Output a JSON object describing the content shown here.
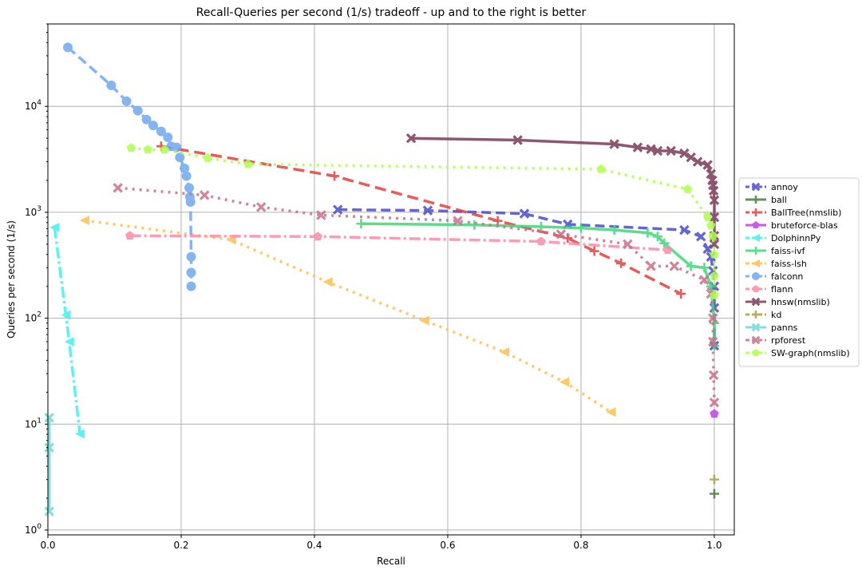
{
  "chart_data": {
    "type": "line",
    "title": "Recall-Queries per second (1/s) tradeoff - up and to the right is better",
    "xlabel": "Recall",
    "ylabel": "Queries per second (1/s)",
    "x_scale": "linear",
    "y_scale": "log",
    "xlim": [
      0.0,
      1.03
    ],
    "ylim": [
      0.9,
      60000
    ],
    "grid": true,
    "legend_position": "right",
    "x_ticks": [
      0.0,
      0.2,
      0.4,
      0.6,
      0.8,
      1.0
    ],
    "x_tick_labels": [
      "0.0",
      "0.2",
      "0.4",
      "0.6",
      "0.8",
      "1.0"
    ],
    "y_ticks": [
      1,
      10,
      100,
      1000,
      10000
    ],
    "y_tick_labels": [
      {
        "base": "10",
        "exp": "0"
      },
      {
        "base": "10",
        "exp": "1"
      },
      {
        "base": "10",
        "exp": "2"
      },
      {
        "base": "10",
        "exp": "3"
      },
      {
        "base": "10",
        "exp": "4"
      }
    ],
    "series": [
      {
        "name": "annoy",
        "color": "#4c4cc9",
        "dash": "12,6",
        "marker": "x",
        "points": [
          [
            0.435,
            1060
          ],
          [
            0.57,
            1040
          ],
          [
            0.715,
            970
          ],
          [
            0.78,
            770
          ],
          [
            0.955,
            680
          ],
          [
            0.98,
            590
          ],
          [
            0.99,
            450
          ],
          [
            0.995,
            380
          ],
          [
            0.998,
            280
          ],
          [
            1.0,
            200
          ],
          [
            1.0,
            125
          ],
          [
            1.0,
            55
          ]
        ]
      },
      {
        "name": "ball",
        "color": "#4a7c40",
        "dash": "",
        "marker": "plus",
        "points": [
          [
            1.0,
            2.2
          ]
        ]
      },
      {
        "name": "BallTree(nmslib)",
        "color": "#e04040",
        "dash": "14,7",
        "marker": "plus",
        "points": [
          [
            0.17,
            4200
          ],
          [
            0.43,
            2200
          ],
          [
            0.675,
            830
          ],
          [
            0.78,
            570
          ],
          [
            0.82,
            430
          ],
          [
            0.86,
            330
          ],
          [
            0.95,
            170
          ]
        ]
      },
      {
        "name": "bruteforce-blas",
        "color": "#bf3fea",
        "dash": "",
        "marker": "pentagon",
        "points": [
          [
            1.0,
            12.5
          ]
        ]
      },
      {
        "name": "DolphinnPy",
        "color": "#40f0f0",
        "dash": "14,4,3,4",
        "marker": "tri-left",
        "points": [
          [
            0.01,
            720
          ],
          [
            0.027,
            107
          ],
          [
            0.032,
            60
          ],
          [
            0.048,
            8.1
          ]
        ]
      },
      {
        "name": "faiss-ivf",
        "color": "#40d87a",
        "dash": "",
        "marker": "plus",
        "points": [
          [
            0.47,
            780
          ],
          [
            0.64,
            760
          ],
          [
            0.74,
            730
          ],
          [
            0.8,
            710
          ],
          [
            0.85,
            680
          ],
          [
            0.9,
            640
          ],
          [
            0.915,
            590
          ],
          [
            0.925,
            510
          ],
          [
            0.965,
            310
          ],
          [
            0.985,
            300
          ],
          [
            0.995,
            200
          ],
          [
            1.0,
            90
          ],
          [
            1.0,
            55
          ]
        ]
      },
      {
        "name": "faiss-lsh",
        "color": "#ffc04c",
        "dash": "3,6",
        "marker": "tri-left",
        "points": [
          [
            0.055,
            840
          ],
          [
            0.275,
            550
          ],
          [
            0.42,
            220
          ],
          [
            0.565,
            95
          ],
          [
            0.685,
            48
          ],
          [
            0.775,
            25
          ],
          [
            0.845,
            13
          ]
        ]
      },
      {
        "name": "falconn",
        "color": "#6fa8f0",
        "dash": "12,6",
        "marker": "circle",
        "points": [
          [
            0.03,
            36000
          ],
          [
            0.095,
            15800
          ],
          [
            0.118,
            11200
          ],
          [
            0.135,
            9100
          ],
          [
            0.148,
            7500
          ],
          [
            0.158,
            6600
          ],
          [
            0.17,
            5800
          ],
          [
            0.18,
            5100
          ],
          [
            0.185,
            4200
          ],
          [
            0.193,
            4100
          ],
          [
            0.198,
            3300
          ],
          [
            0.205,
            2600
          ],
          [
            0.208,
            2200
          ],
          [
            0.212,
            1700
          ],
          [
            0.213,
            1400
          ],
          [
            0.214,
            1250
          ],
          [
            0.215,
            380
          ],
          [
            0.215,
            270
          ],
          [
            0.215,
            200
          ]
        ]
      },
      {
        "name": "flann",
        "color": "#ff8aa8",
        "dash": "14,4,3,4",
        "marker": "pentagon",
        "points": [
          [
            0.123,
            600
          ],
          [
            0.405,
            590
          ],
          [
            0.74,
            530
          ],
          [
            0.93,
            440
          ]
        ]
      },
      {
        "name": "hnsw(nmslib)",
        "color": "#7a3a5a",
        "dash": "",
        "marker": "x",
        "points": [
          [
            0.545,
            5000
          ],
          [
            0.705,
            4800
          ],
          [
            0.85,
            4400
          ],
          [
            0.885,
            4100
          ],
          [
            0.905,
            3950
          ],
          [
            0.915,
            3800
          ],
          [
            0.935,
            3800
          ],
          [
            0.955,
            3600
          ],
          [
            0.965,
            3300
          ],
          [
            0.975,
            3000
          ],
          [
            0.99,
            2800
          ],
          [
            0.995,
            2300
          ],
          [
            0.997,
            2000
          ],
          [
            0.998,
            1800
          ],
          [
            0.999,
            1600
          ],
          [
            1.0,
            1300
          ],
          [
            1.0,
            900
          ],
          [
            1.0,
            600
          ],
          [
            1.0,
            500
          ]
        ]
      },
      {
        "name": "kd",
        "color": "#a8a24a",
        "dash": "3,3",
        "marker": "plus",
        "points": [
          [
            1.0,
            3.0
          ]
        ]
      },
      {
        "name": "panns",
        "color": "#70d8d8",
        "dash": "",
        "marker": "x",
        "points": [
          [
            0.002,
            11.5
          ],
          [
            0.002,
            6
          ],
          [
            0.002,
            1.5
          ]
        ]
      },
      {
        "name": "rpforest",
        "color": "#c7708a",
        "dash": "3,6",
        "marker": "x",
        "points": [
          [
            0.105,
            1700
          ],
          [
            0.235,
            1450
          ],
          [
            0.32,
            1120
          ],
          [
            0.41,
            940
          ],
          [
            0.615,
            830
          ],
          [
            0.77,
            620
          ],
          [
            0.87,
            500
          ],
          [
            0.905,
            310
          ],
          [
            0.94,
            310
          ],
          [
            0.985,
            230
          ],
          [
            0.995,
            170
          ],
          [
            0.998,
            100
          ],
          [
            0.998,
            60
          ],
          [
            0.999,
            29
          ],
          [
            1.0,
            16
          ]
        ]
      },
      {
        "name": "SW-graph(nmslib)",
        "color": "#b0ff4c",
        "dash": "3,6",
        "marker": "pentagon",
        "points": [
          [
            0.125,
            4050
          ],
          [
            0.15,
            3900
          ],
          [
            0.175,
            3900
          ],
          [
            0.24,
            3250
          ],
          [
            0.3,
            2850
          ],
          [
            0.83,
            2550
          ],
          [
            0.96,
            1650
          ],
          [
            0.99,
            900
          ],
          [
            0.995,
            750
          ],
          [
            0.998,
            600
          ],
          [
            1.0,
            400
          ],
          [
            1.0,
            250
          ],
          [
            1.0,
            165
          ]
        ]
      }
    ]
  }
}
